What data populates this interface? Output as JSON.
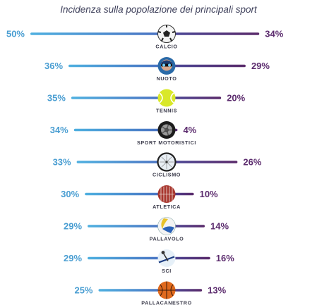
{
  "chart_data": {
    "type": "bar",
    "title": "Incidenza sulla popolazione dei principali sport",
    "categories": [
      "CALCIO",
      "NUOTO",
      "TENNIS",
      "SPORT MOTORISTICI",
      "CICLISMO",
      "ATLETICA",
      "PALLAVOLO",
      "SCI",
      "PALLACANESTRO"
    ],
    "series": [
      {
        "values": [
          50,
          36,
          35,
          34,
          33,
          30,
          29,
          29,
          25
        ],
        "labels": [
          "50%",
          "36%",
          "35%",
          "34%",
          "33%",
          "30%",
          "29%",
          "29%",
          "25%"
        ]
      },
      {
        "values": [
          34,
          29,
          20,
          4,
          26,
          10,
          14,
          16,
          13
        ],
        "labels": [
          "34%",
          "29%",
          "20%",
          "4%",
          "26%",
          "10%",
          "14%",
          "16%",
          "13%"
        ]
      }
    ],
    "icons": [
      "soccer-ball-icon",
      "swimmer-icon",
      "tennis-ball-icon",
      "tire-icon",
      "bicycle-wheel-icon",
      "running-track-icon",
      "volleyball-icon",
      "ski-icon",
      "basketball-icon"
    ],
    "colors": {
      "left_start": "#4fb0e0",
      "left_end": "#4a6fc0",
      "right_start": "#4a4a9a",
      "right_end": "#5a2a6a",
      "left_text": "#4a9ed2",
      "right_text": "#5c2c6e"
    }
  }
}
